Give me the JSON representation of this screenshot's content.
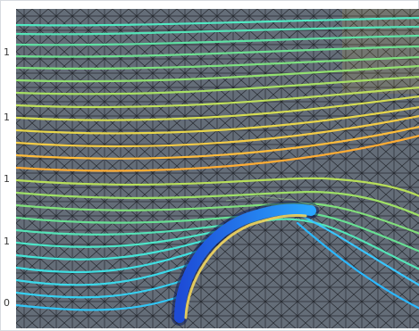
{
  "axis": {
    "left_ticks": [
      "1",
      "1",
      "1",
      "1",
      "0"
    ]
  }
}
